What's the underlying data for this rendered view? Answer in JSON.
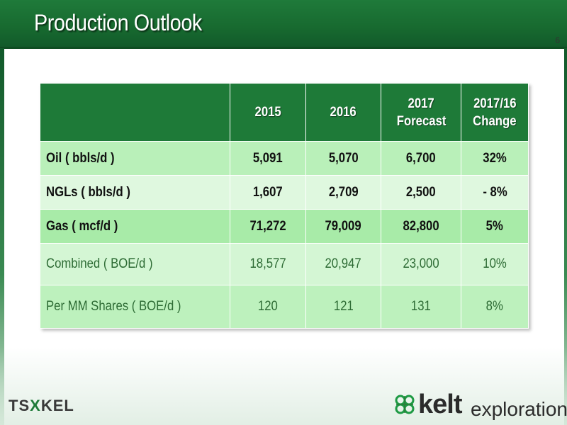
{
  "slide": {
    "title": "Production Outlook",
    "page_number": "6"
  },
  "table": {
    "headers": {
      "label": "",
      "y2015": "2015",
      "y2016": "2016",
      "y2017_line1": "2017",
      "y2017_line2": "Forecast",
      "chg_line1": "2017/16",
      "chg_line2": "Change"
    },
    "rows": [
      {
        "label": "Oil ( bbls/d )",
        "v2015": "5,091",
        "v2016": "5,070",
        "v2017": "6,700",
        "change": "32%"
      },
      {
        "label": "NGLs ( bbls/d )",
        "v2015": "1,607",
        "v2016": "2,709",
        "v2017": "2,500",
        "change": "- 8%"
      },
      {
        "label": "Gas ( mcf/d )",
        "v2015": "71,272",
        "v2016": "79,009",
        "v2017": "82,800",
        "change": "5%"
      },
      {
        "label": "Combined ( BOE/d )",
        "v2015": "18,577",
        "v2016": "20,947",
        "v2017": "23,000",
        "change": "10%"
      },
      {
        "label": "Per MM Shares ( BOE/d )",
        "v2015": "120",
        "v2016": "121",
        "v2017": "131",
        "change": "8%"
      }
    ]
  },
  "footer": {
    "tsx_logo_text_a": "TS",
    "tsx_logo_text_mark": "X",
    "tsx_logo_text_b": "KEL",
    "kelt_word": "kelt",
    "kelt_sub": "exploration"
  },
  "colors": {
    "header_green": "#1f7a3a",
    "table_header_green": "#1e7a38",
    "row_light_green": "#b9f0b9",
    "row_pale_green": "#dff8df",
    "kelt_green": "#1e9a44"
  }
}
